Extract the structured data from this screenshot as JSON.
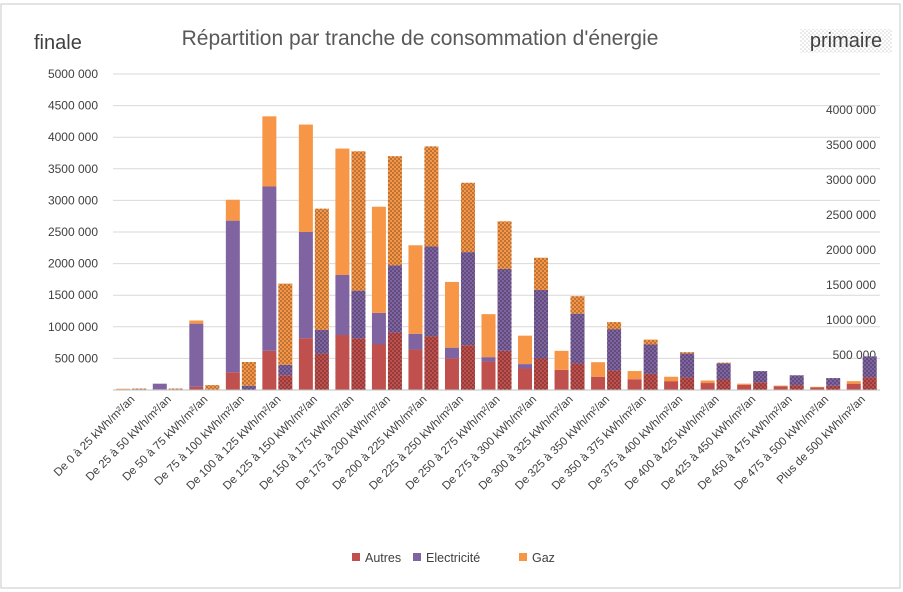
{
  "colors": {
    "autres": "#C0504D",
    "electricite": "#8064A2",
    "gaz": "#F79646",
    "grid": "#D9D9D9",
    "text": "#404040"
  },
  "chart_data": {
    "type": "bar",
    "title": "Répartition par tranche de consommation d'énergie",
    "left_label": "finale",
    "right_label": "primaire",
    "grid": true,
    "legend_position": "bottom",
    "categories": [
      "De 0 à 25 kWh/m²/an",
      "De 25 à 50 kWh/m²/an",
      "De 50 à 75 kWh/m²/an",
      "De 75 à 100 kWh/m²/an",
      "De 100 à 125 kWh/m²/an",
      "De 125 à 150 kWh/m²/an",
      "De 150 à 175 kWh/m²/an",
      "De 175 à 200 kWh/m²/an",
      "De 200 à 225 kWh/m²/an",
      "De 225 à 250 kWh/m²/an",
      "De 250 à 275 kWh/m²/an",
      "De 275 à 300 kWh/m²/an",
      "De 300 à 325 kWh/m²/an",
      "De 325 à 350 kWh/m²/an",
      "De 350 à 375 kWh/m²/an",
      "De 375 à 400 kWh/m²/an",
      "De 400 à 425 kWh/m²/an",
      "De 425 à 450 kWh/m²/an",
      "De 450 à 475 kWh/m²/an",
      "De 475 à 500 kWh/m²/an",
      "Plus de 500 kWh/m²/an"
    ],
    "left_axis": {
      "ylim": [
        0,
        5000000
      ],
      "ticks": [
        "500 000",
        "1000 000",
        "1500 000",
        "2000 000",
        "2500 000",
        "3000 000",
        "3500 000",
        "4000 000",
        "4500 000",
        "5000 000"
      ]
    },
    "right_axis": {
      "ylim": [
        0,
        4600000
      ],
      "ticks": [
        "500 000",
        "1000 000",
        "1500 000",
        "2000 000",
        "2500 000",
        "3000 000",
        "3500 000",
        "4000 000"
      ]
    },
    "finale": {
      "axis": "left",
      "series": [
        {
          "name": "Autres",
          "values": [
            0,
            10000,
            50000,
            280000,
            620000,
            820000,
            870000,
            720000,
            640000,
            500000,
            450000,
            340000,
            320000,
            210000,
            170000,
            140000,
            110000,
            80000,
            60000,
            40000,
            100000
          ]
        },
        {
          "name": "Electricité",
          "values": [
            10000,
            90000,
            1000000,
            2400000,
            2600000,
            1680000,
            950000,
            500000,
            250000,
            170000,
            70000,
            70000,
            0,
            0,
            0,
            0,
            0,
            0,
            0,
            0,
            0
          ]
        },
        {
          "name": "Gaz",
          "values": [
            10000,
            0,
            50000,
            330000,
            1110000,
            1700000,
            2000000,
            1680000,
            1400000,
            1040000,
            680000,
            450000,
            300000,
            230000,
            130000,
            70000,
            40000,
            20000,
            10000,
            10000,
            40000
          ]
        }
      ]
    },
    "primaire": {
      "axis": "right",
      "series": [
        {
          "name": "Autres",
          "values": [
            0,
            0,
            0,
            0,
            210000,
            520000,
            740000,
            820000,
            770000,
            640000,
            560000,
            450000,
            380000,
            280000,
            230000,
            180000,
            150000,
            110000,
            70000,
            60000,
            180000
          ]
        },
        {
          "name": "Electricité",
          "values": [
            10000,
            10000,
            10000,
            60000,
            150000,
            340000,
            680000,
            960000,
            1280000,
            1330000,
            1170000,
            980000,
            710000,
            590000,
            420000,
            340000,
            230000,
            160000,
            140000,
            110000,
            300000
          ]
        },
        {
          "name": "Gaz",
          "values": [
            10000,
            10000,
            60000,
            340000,
            1160000,
            1730000,
            1990000,
            1560000,
            1430000,
            990000,
            680000,
            460000,
            250000,
            100000,
            70000,
            20000,
            10000,
            0,
            0,
            0,
            0
          ]
        }
      ]
    },
    "legend": [
      "Autres",
      "Electricité",
      "Gaz"
    ]
  }
}
